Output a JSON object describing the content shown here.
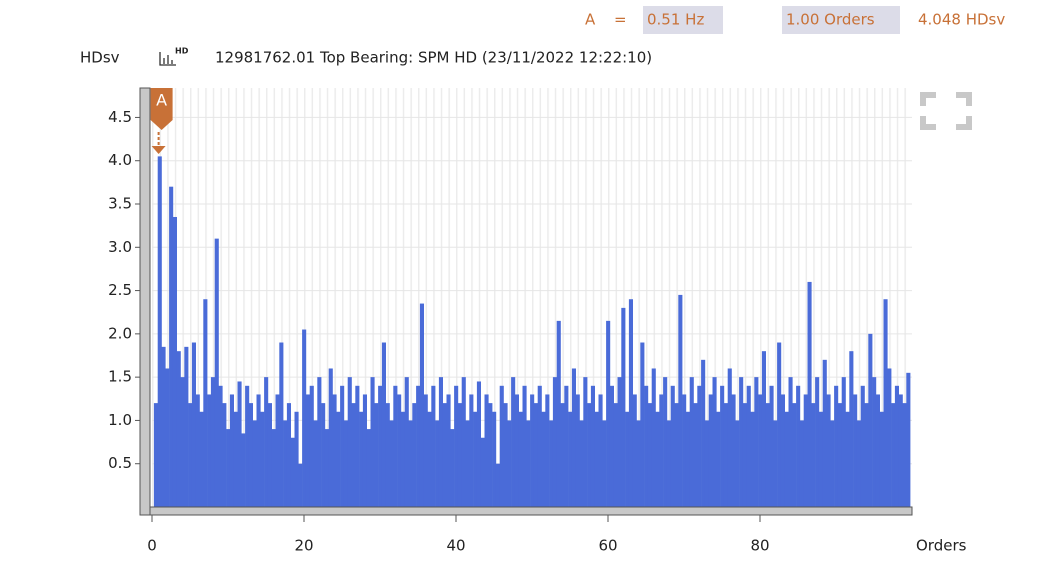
{
  "chart_data": {
    "type": "bar",
    "readout": {
      "cursor": "A",
      "equals": "=",
      "frequency": "0.51 Hz",
      "orders": "1.00 Orders",
      "amplitude": "4.048 HDsv"
    },
    "header": {
      "unit": "HDsv",
      "icon": "HD",
      "title": "12981762.01  Top Bearing: SPM HD (23/11/2022 12:22:10)"
    },
    "xlabel": "Orders",
    "cursor": {
      "label": "A",
      "x": 1
    },
    "color": "#4a6bd8",
    "xlim": [
      0,
      100
    ],
    "ylim": [
      0,
      4.84
    ],
    "xticks": [
      0,
      20,
      40,
      60,
      80
    ],
    "yticks": [
      0.5,
      {
        "value": 1,
        "label": "1.0"
      },
      1.5,
      {
        "value": 2,
        "label": "2.0"
      },
      2.5,
      {
        "value": 3,
        "label": "3.0"
      },
      3.5,
      {
        "value": 4,
        "label": "4.0"
      },
      4.5
    ],
    "grid": true,
    "x": [
      0.5,
      1,
      1.5,
      2,
      2.5,
      3,
      3.5,
      4,
      4.5,
      5,
      5.5,
      6,
      6.5,
      7,
      7.5,
      8,
      8.5,
      9,
      9.5,
      10,
      10.5,
      11,
      11.5,
      12,
      12.5,
      13,
      13.5,
      14,
      14.5,
      15,
      15.5,
      16,
      16.5,
      17,
      17.5,
      18,
      18.5,
      19,
      19.5,
      20,
      20.5,
      21,
      21.5,
      22,
      22.5,
      23,
      23.5,
      24,
      24.5,
      25,
      25.5,
      26,
      26.5,
      27,
      27.5,
      28,
      28.5,
      29,
      29.5,
      30,
      30.5,
      31,
      31.5,
      32,
      32.5,
      33,
      33.5,
      34,
      34.5,
      35,
      35.5,
      36,
      36.5,
      37,
      37.5,
      38,
      38.5,
      39,
      39.5,
      40,
      40.5,
      41,
      41.5,
      42,
      42.5,
      43,
      43.5,
      44,
      44.5,
      45,
      45.5,
      46,
      46.5,
      47,
      47.5,
      48,
      48.5,
      49,
      49.5,
      50,
      50.5,
      51,
      51.5,
      52,
      52.5,
      53,
      53.5,
      54,
      54.5,
      55,
      55.5,
      56,
      56.5,
      57,
      57.5,
      58,
      58.5,
      59,
      59.5,
      60,
      60.5,
      61,
      61.5,
      62,
      62.5,
      63,
      63.5,
      64,
      64.5,
      65,
      65.5,
      66,
      66.5,
      67,
      67.5,
      68,
      68.5,
      69,
      69.5,
      70,
      70.5,
      71,
      71.5,
      72,
      72.5,
      73,
      73.5,
      74,
      74.5,
      75,
      75.5,
      76,
      76.5,
      77,
      77.5,
      78,
      78.5,
      79,
      79.5,
      80,
      80.5,
      81,
      81.5,
      82,
      82.5,
      83,
      83.5,
      84,
      84.5,
      85,
      85.5,
      86,
      86.5,
      87,
      87.5,
      88,
      88.5,
      89,
      89.5,
      90,
      90.5,
      91,
      91.5,
      92,
      92.5,
      93,
      93.5,
      94,
      94.5,
      95,
      95.5,
      96,
      96.5,
      97,
      97.5,
      98,
      98.5,
      99,
      99.5
    ],
    "values": [
      1.2,
      4.05,
      1.85,
      1.6,
      3.7,
      3.35,
      1.8,
      1.5,
      1.85,
      1.2,
      1.9,
      1.3,
      1.1,
      2.4,
      1.3,
      1.5,
      3.1,
      1.4,
      1.2,
      0.9,
      1.3,
      1.1,
      1.45,
      0.85,
      1.4,
      1.2,
      1.0,
      1.3,
      1.1,
      1.5,
      1.2,
      0.9,
      1.3,
      1.9,
      1.0,
      1.2,
      0.8,
      1.1,
      0.5,
      2.05,
      1.3,
      1.4,
      1.0,
      1.5,
      1.2,
      0.9,
      1.6,
      1.3,
      1.1,
      1.4,
      1.0,
      1.5,
      1.2,
      1.4,
      1.1,
      1.3,
      0.9,
      1.5,
      1.2,
      1.4,
      1.9,
      1.2,
      1.0,
      1.4,
      1.3,
      1.1,
      1.5,
      1.0,
      1.2,
      1.4,
      2.35,
      1.3,
      1.1,
      1.4,
      1.0,
      1.5,
      1.2,
      1.3,
      0.9,
      1.4,
      1.2,
      1.5,
      1.0,
      1.3,
      1.1,
      1.45,
      0.8,
      1.3,
      1.2,
      1.1,
      0.5,
      1.4,
      1.2,
      1.0,
      1.5,
      1.3,
      1.1,
      1.4,
      1.0,
      1.3,
      1.2,
      1.4,
      1.1,
      1.3,
      1.0,
      1.5,
      2.15,
      1.2,
      1.4,
      1.1,
      1.6,
      1.3,
      1.0,
      1.5,
      1.2,
      1.4,
      1.1,
      1.3,
      1.0,
      2.15,
      1.4,
      1.2,
      1.5,
      2.3,
      1.1,
      2.4,
      1.3,
      1.0,
      1.9,
      1.4,
      1.2,
      1.6,
      1.1,
      1.3,
      1.5,
      1.0,
      1.4,
      1.2,
      2.45,
      1.3,
      1.1,
      1.5,
      1.2,
      1.4,
      1.7,
      1.0,
      1.3,
      1.5,
      1.1,
      1.4,
      1.2,
      1.6,
      1.3,
      1.0,
      1.5,
      1.2,
      1.4,
      1.1,
      1.5,
      1.3,
      1.8,
      1.2,
      1.4,
      1.0,
      1.9,
      1.3,
      1.1,
      1.5,
      1.2,
      1.4,
      1.0,
      1.3,
      2.6,
      1.2,
      1.5,
      1.1,
      1.7,
      1.3,
      1.0,
      1.4,
      1.2,
      1.5,
      1.1,
      1.8,
      1.3,
      1.0,
      1.4,
      1.2,
      2.0,
      1.5,
      1.3,
      1.1,
      2.4,
      1.6,
      1.2,
      1.4,
      1.3,
      1.2,
      1.55
    ]
  }
}
